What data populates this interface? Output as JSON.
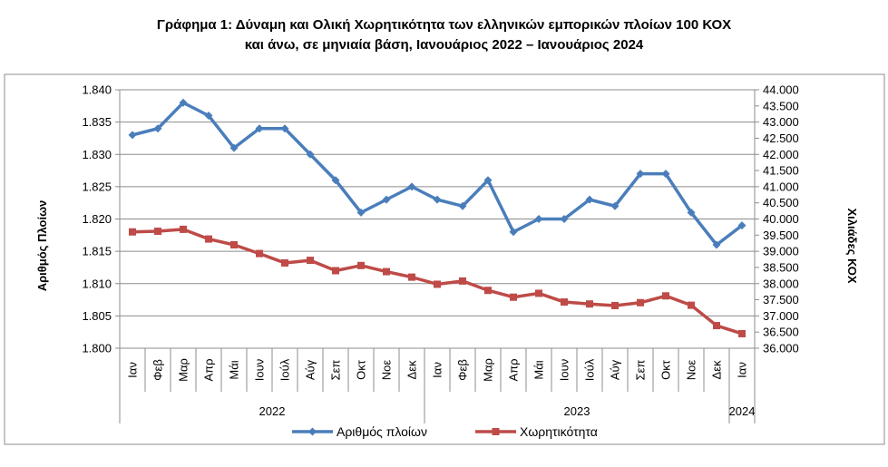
{
  "chart_data": {
    "type": "line",
    "title": "Γράφημα 1: Δύναμη και Ολική Χωρητικότητα των ελληνικών εμπορικών πλοίων 100 ΚΟΧ",
    "subtitle": "και άνω, σε μηνιαία βάση, Ιανουάριος 2022 – Ιανουάριος 2024",
    "ylabel": "Αριθμός Πλοίων",
    "y2label": "Χιλιάδες ΚΟΧ",
    "categories": [
      "Ιαν",
      "Φεβ",
      "Μαρ",
      "Απρ",
      "Μάι",
      "Ιουν",
      "Ιούλ",
      "Αύγ",
      "Σεπ",
      "Οκτ",
      "Νοε",
      "Δεκ",
      "Ιαν",
      "Φεβ",
      "Μαρ",
      "Απρ",
      "Μάι",
      "Ιουν",
      "Ιούλ",
      "Αύγ",
      "Σεπ",
      "Οκτ",
      "Νοε",
      "Δεκ",
      "Ιαν"
    ],
    "years": [
      {
        "label": "2022",
        "from": 0,
        "to": 11
      },
      {
        "label": "2023",
        "from": 12,
        "to": 23
      },
      {
        "label": "2024",
        "from": 24,
        "to": 24
      }
    ],
    "ylim": [
      1800,
      1840
    ],
    "y_ticks": [
      "1.800",
      "1.805",
      "1.810",
      "1.815",
      "1.820",
      "1.825",
      "1.830",
      "1.835",
      "1.840"
    ],
    "y2lim": [
      36000,
      44000
    ],
    "y2_ticks": [
      "36.000",
      "36.500",
      "37.000",
      "37.500",
      "38.000",
      "38.500",
      "39.000",
      "39.500",
      "40.000",
      "40.500",
      "41.000",
      "41.500",
      "42.000",
      "42.500",
      "43.000",
      "43.500",
      "44.000"
    ],
    "grid": true,
    "legend_position": "bottom",
    "series": [
      {
        "name": "Αριθμός πλοίων",
        "axis": "left",
        "color": "#4a7ebb",
        "marker": "diamond",
        "values": [
          1833,
          1834,
          1838,
          1836,
          1831,
          1834,
          1834,
          1830,
          1826,
          1821,
          1823,
          1825,
          1823,
          1822,
          1826,
          1818,
          1820,
          1820,
          1823,
          1822,
          1827,
          1827,
          1821,
          1816,
          1819
        ]
      },
      {
        "name": "Χωρητικότητα",
        "axis": "right",
        "color": "#be4b48",
        "marker": "square",
        "values": [
          39600,
          39620,
          39680,
          39380,
          39200,
          38930,
          38640,
          38720,
          38400,
          38560,
          38370,
          38200,
          37980,
          38080,
          37790,
          37580,
          37700,
          37430,
          37370,
          37320,
          37410,
          37620,
          37330,
          36700,
          36450
        ]
      }
    ]
  }
}
